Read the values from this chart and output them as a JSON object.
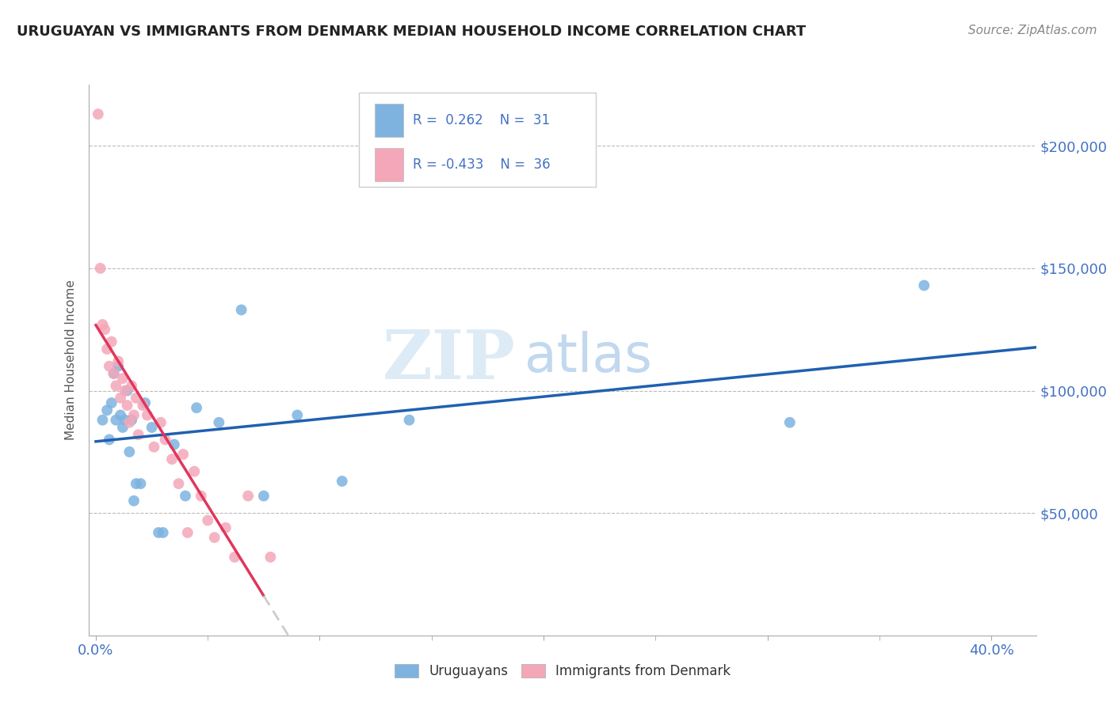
{
  "title": "URUGUAYAN VS IMMIGRANTS FROM DENMARK MEDIAN HOUSEHOLD INCOME CORRELATION CHART",
  "source": "Source: ZipAtlas.com",
  "ylabel": "Median Household Income",
  "xlabel_ticks": [
    "0.0%",
    "",
    "",
    "",
    "40.0%"
  ],
  "xlabel_tick_vals": [
    0.0,
    0.1,
    0.2,
    0.3,
    0.4
  ],
  "ytick_labels": [
    "$50,000",
    "$100,000",
    "$150,000",
    "$200,000"
  ],
  "ytick_vals": [
    50000,
    100000,
    150000,
    200000
  ],
  "xlim": [
    -0.003,
    0.42
  ],
  "ylim": [
    0,
    225000
  ],
  "r_uruguayan": 0.262,
  "n_uruguayan": 31,
  "r_denmark": -0.433,
  "n_denmark": 36,
  "color_uruguayan": "#7EB3E0",
  "color_denmark": "#F4A7B9",
  "trendline_uruguayan_color": "#2060B0",
  "trendline_denmark_color": "#E0365A",
  "trendline_denmark_ext_color": "#CCCCCC",
  "legend_label_uruguayan": "Uruguayans",
  "legend_label_denmark": "Immigrants from Denmark",
  "watermark_zip": "ZIP",
  "watermark_atlas": "atlas",
  "uruguayan_x": [
    0.003,
    0.005,
    0.006,
    0.007,
    0.008,
    0.009,
    0.01,
    0.011,
    0.012,
    0.013,
    0.014,
    0.015,
    0.016,
    0.017,
    0.018,
    0.02,
    0.022,
    0.025,
    0.028,
    0.03,
    0.035,
    0.04,
    0.045,
    0.055,
    0.065,
    0.075,
    0.09,
    0.11,
    0.14,
    0.31,
    0.37
  ],
  "uruguayan_y": [
    88000,
    92000,
    80000,
    95000,
    107000,
    88000,
    110000,
    90000,
    85000,
    88000,
    100000,
    75000,
    88000,
    55000,
    62000,
    62000,
    95000,
    85000,
    42000,
    42000,
    78000,
    57000,
    93000,
    87000,
    133000,
    57000,
    90000,
    63000,
    88000,
    87000,
    143000
  ],
  "denmark_x": [
    0.001,
    0.002,
    0.003,
    0.004,
    0.005,
    0.006,
    0.007,
    0.008,
    0.009,
    0.01,
    0.011,
    0.012,
    0.013,
    0.014,
    0.015,
    0.016,
    0.017,
    0.018,
    0.019,
    0.021,
    0.023,
    0.026,
    0.029,
    0.031,
    0.034,
    0.037,
    0.039,
    0.041,
    0.044,
    0.047,
    0.05,
    0.053,
    0.058,
    0.062,
    0.068,
    0.078
  ],
  "denmark_y": [
    213000,
    150000,
    127000,
    125000,
    117000,
    110000,
    120000,
    107000,
    102000,
    112000,
    97000,
    105000,
    100000,
    94000,
    87000,
    102000,
    90000,
    97000,
    82000,
    94000,
    90000,
    77000,
    87000,
    80000,
    72000,
    62000,
    74000,
    42000,
    67000,
    57000,
    47000,
    40000,
    44000,
    32000,
    57000,
    32000
  ]
}
